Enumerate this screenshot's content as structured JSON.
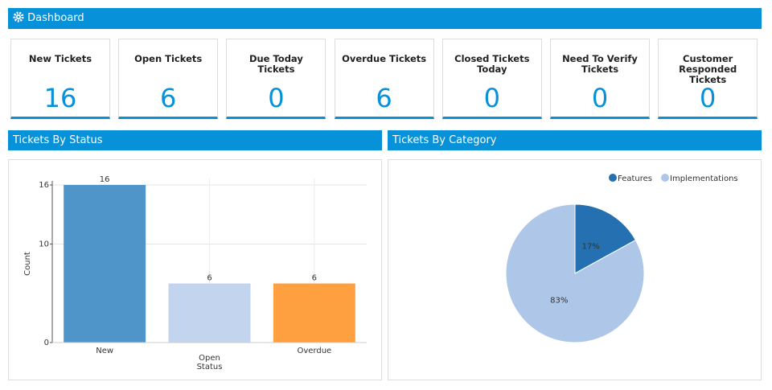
{
  "header": {
    "title": "Dashboard"
  },
  "cards": [
    {
      "label": "New Tickets",
      "value": 16
    },
    {
      "label": "Open Tickets",
      "value": 6
    },
    {
      "label": "Due Today Tickets",
      "value": 0
    },
    {
      "label": "Overdue Tickets",
      "value": 6
    },
    {
      "label": "Closed Tickets Today",
      "value": 0
    },
    {
      "label": "Need To Verify Tickets",
      "value": 0
    },
    {
      "label": "Customer Responded Tickets",
      "value": 0
    }
  ],
  "panels": [
    "Tickets By Status",
    "Tickets By Category"
  ],
  "chart_data": [
    {
      "type": "bar",
      "categories": [
        "New",
        "Open",
        "Overdue"
      ],
      "values": [
        16,
        6,
        6
      ],
      "colors": [
        "#4f95c9",
        "#c3d4ee",
        "#ffa040"
      ],
      "x_label": "Status",
      "y_label": "Count",
      "ylim": [
        0,
        16
      ],
      "yticks": [
        0,
        10,
        16
      ],
      "grid": true
    },
    {
      "type": "pie",
      "categories": [
        "Features",
        "Implementations"
      ],
      "values": [
        17,
        83
      ],
      "value_labels": [
        "17%",
        "83%"
      ],
      "colors": [
        "#2470b0",
        "#aec6e8"
      ],
      "legend": "top-right"
    }
  ]
}
